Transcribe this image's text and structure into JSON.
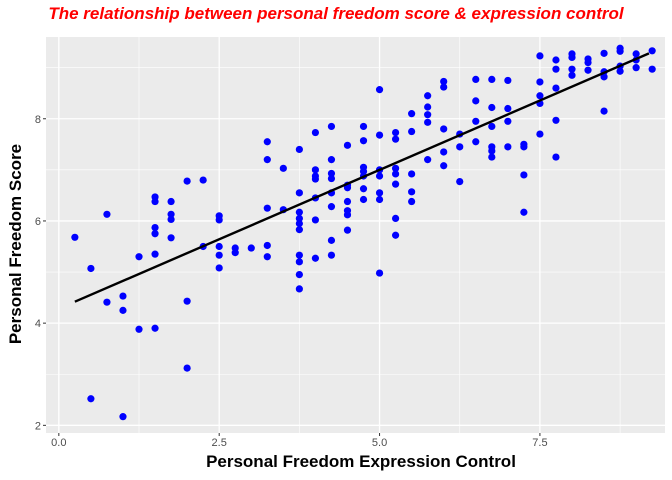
{
  "chart_data": {
    "type": "scatter",
    "title": "The relationship between personal freedom score & expression control",
    "xlabel": "Personal Freedom Expression Control",
    "ylabel": "Personal Freedom Score",
    "xlim": [
      -0.2,
      9.45
    ],
    "ylim": [
      1.85,
      9.6
    ],
    "x_ticks": [
      0.0,
      2.5,
      5.0,
      7.5
    ],
    "x_tick_labels": [
      "0.0",
      "2.5",
      "5.0",
      "7.5"
    ],
    "y_ticks": [
      2,
      4,
      6,
      8
    ],
    "y_tick_labels": [
      "2",
      "4",
      "6",
      "8"
    ],
    "grid": true,
    "point_color": "#0000ff",
    "line_color": "#000000",
    "panel_color": "#ebebeb",
    "grid_color": "#ffffff",
    "trend_line": {
      "x": [
        0.25,
        9.2
      ],
      "y": [
        4.42,
        9.28
      ]
    },
    "points": {
      "x": [
        0.25,
        0.5,
        0.5,
        0.75,
        0.75,
        1,
        1,
        1,
        1.25,
        1.25,
        1.5,
        1.5,
        1.5,
        1.5,
        1.5,
        1.5,
        1.75,
        1.75,
        1.75,
        1.75,
        2,
        2,
        2,
        2.25,
        2.25,
        2.5,
        2.5,
        2.5,
        2.5,
        2.5,
        2.75,
        2.75,
        3,
        3.25,
        3.25,
        3.25,
        3.25,
        3.25,
        3.5,
        3.5,
        3.75,
        3.75,
        3.75,
        3.75,
        3.75,
        3.75,
        3.75,
        3.75,
        3.75,
        3.75,
        4,
        4,
        4,
        4,
        4,
        4,
        4,
        4.25,
        4.25,
        4.25,
        4.25,
        4.25,
        4.25,
        4.25,
        4.25,
        4.5,
        4.5,
        4.5,
        4.5,
        4.5,
        4.5,
        4.5,
        4.75,
        4.75,
        4.75,
        4.75,
        4.75,
        4.75,
        4.75,
        5,
        5,
        5,
        5,
        5,
        5,
        5,
        5.25,
        5.25,
        5.25,
        5.25,
        5.25,
        5.25,
        5.25,
        5.5,
        5.5,
        5.5,
        5.5,
        5.5,
        5.75,
        5.75,
        5.75,
        5.75,
        5.75,
        6,
        6,
        6,
        6,
        6,
        6.25,
        6.25,
        6.25,
        6.5,
        6.5,
        6.5,
        6.5,
        6.75,
        6.75,
        6.75,
        6.75,
        6.75,
        6.75,
        7,
        7,
        7,
        7,
        7.25,
        7.25,
        7.25,
        7.25,
        7.5,
        7.5,
        7.5,
        7.5,
        7.5,
        7.75,
        7.75,
        7.75,
        7.75,
        7.75,
        8,
        8,
        8,
        8,
        8.25,
        8.25,
        8.25,
        8.5,
        8.5,
        8.5,
        8.5,
        8.75,
        8.75,
        8.75,
        8.75,
        9,
        9,
        9,
        9.25,
        9.25
      ],
      "y": [
        5.68,
        2.52,
        5.07,
        4.41,
        6.13,
        2.17,
        4.25,
        4.53,
        3.88,
        5.3,
        3.9,
        5.35,
        5.75,
        5.87,
        6.38,
        6.47,
        5.67,
        6.03,
        6.13,
        6.38,
        3.12,
        4.43,
        6.78,
        5.5,
        6.8,
        5.08,
        5.33,
        5.5,
        6.02,
        6.1,
        5.38,
        5.47,
        5.47,
        5.3,
        5.52,
        6.25,
        7.2,
        7.55,
        6.22,
        7.03,
        4.67,
        4.95,
        5.2,
        5.33,
        5.83,
        5.95,
        6.05,
        6.17,
        6.55,
        7.4,
        5.27,
        6.02,
        6.45,
        6.82,
        6.88,
        7.0,
        7.73,
        5.33,
        5.62,
        6.28,
        6.55,
        6.83,
        6.93,
        7.2,
        7.85,
        5.82,
        6.12,
        6.2,
        6.38,
        6.65,
        6.7,
        7.48,
        6.42,
        6.63,
        6.88,
        6.97,
        7.05,
        7.57,
        7.85,
        4.98,
        6.42,
        6.55,
        6.88,
        7.0,
        7.68,
        8.57,
        5.72,
        6.05,
        6.72,
        6.92,
        7.03,
        7.6,
        7.73,
        6.38,
        6.57,
        6.92,
        7.75,
        8.1,
        7.2,
        7.93,
        8.08,
        8.23,
        8.45,
        7.08,
        7.35,
        7.8,
        8.62,
        8.73,
        6.77,
        7.45,
        7.7,
        7.55,
        7.95,
        8.35,
        8.77,
        7.25,
        7.37,
        7.45,
        7.85,
        8.22,
        8.77,
        7.45,
        7.95,
        8.2,
        8.75,
        6.17,
        6.9,
        7.45,
        7.5,
        7.7,
        8.3,
        8.45,
        8.72,
        9.23,
        7.25,
        7.97,
        8.6,
        8.97,
        9.15,
        8.85,
        8.97,
        9.2,
        9.27,
        8.95,
        9.1,
        9.17,
        8.15,
        8.82,
        8.92,
        9.28,
        8.93,
        9.03,
        9.32,
        9.38,
        9.0,
        9.15,
        9.27,
        8.97,
        9.33
      ]
    }
  }
}
